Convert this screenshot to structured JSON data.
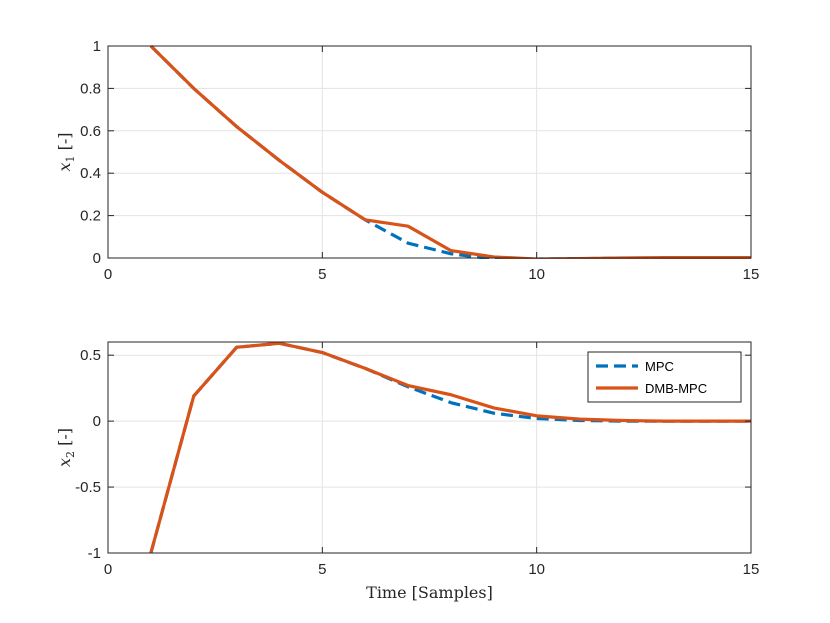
{
  "chart_data": [
    {
      "type": "line",
      "xlabel": "",
      "ylabel_var": "x",
      "ylabel_sub": "1",
      "ylabel_unit": "[-]",
      "xlim": [
        0,
        15
      ],
      "ylim": [
        0,
        1
      ],
      "xticks": [
        "0",
        "5",
        "10",
        "15"
      ],
      "yticks": [
        "0",
        "0.2",
        "0.4",
        "0.6",
        "0.8",
        "1"
      ],
      "grid": true,
      "series": [
        {
          "name": "MPC",
          "color": "#0072BD",
          "style": "dashed",
          "x": [
            1,
            2,
            3,
            4,
            5,
            6,
            7,
            8,
            9,
            10,
            11,
            12,
            13,
            14,
            15
          ],
          "values": [
            1.0,
            0.8,
            0.62,
            0.46,
            0.31,
            0.18,
            0.07,
            0.02,
            -0.005,
            -0.005,
            -0.003,
            -0.001,
            0.0,
            0.0,
            0.0
          ]
        },
        {
          "name": "DMB-MPC",
          "color": "#D95319",
          "style": "solid",
          "x": [
            1,
            2,
            3,
            4,
            5,
            6,
            7,
            8,
            9,
            10,
            11,
            12,
            13,
            14,
            15
          ],
          "values": [
            1.0,
            0.8,
            0.62,
            0.46,
            0.31,
            0.18,
            0.15,
            0.035,
            0.005,
            -0.005,
            -0.003,
            0.0,
            0.002,
            0.002,
            0.002
          ]
        }
      ]
    },
    {
      "type": "line",
      "xlabel": "Time [Samples]",
      "ylabel_var": "x",
      "ylabel_sub": "2",
      "ylabel_unit": "[-]",
      "xlim": [
        0,
        15
      ],
      "ylim": [
        -1,
        0.6
      ],
      "xticks": [
        "0",
        "5",
        "10",
        "15"
      ],
      "yticks": [
        "-1",
        "-0.5",
        "0",
        "0.5"
      ],
      "ytick_values": [
        -1,
        -0.5,
        0,
        0.5
      ],
      "grid": true,
      "legend": "top-right",
      "series": [
        {
          "name": "MPC",
          "color": "#0072BD",
          "style": "dashed",
          "x": [
            1,
            2,
            3,
            4,
            5,
            6,
            7,
            8,
            9,
            10,
            11,
            12,
            13,
            14,
            15
          ],
          "values": [
            -1.0,
            0.19,
            0.56,
            0.59,
            0.52,
            0.4,
            0.26,
            0.14,
            0.06,
            0.02,
            0.005,
            0.0,
            0.0,
            0.0,
            0.0
          ]
        },
        {
          "name": "DMB-MPC",
          "color": "#D95319",
          "style": "solid",
          "x": [
            1,
            2,
            3,
            4,
            5,
            6,
            7,
            8,
            9,
            10,
            11,
            12,
            13,
            14,
            15
          ],
          "values": [
            -1.0,
            0.19,
            0.56,
            0.59,
            0.52,
            0.4,
            0.27,
            0.2,
            0.1,
            0.04,
            0.015,
            0.005,
            0.0,
            0.0,
            0.0
          ]
        }
      ]
    }
  ]
}
